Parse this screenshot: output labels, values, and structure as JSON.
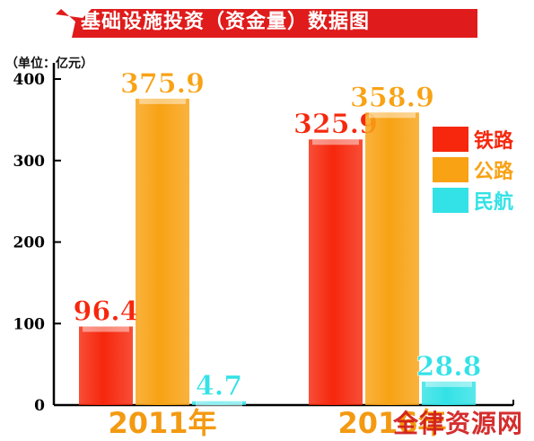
{
  "title": "基础设施投资（资金量）数据图",
  "unit": "（单位：亿元）",
  "watermark": "全律资源网",
  "colors": {
    "title_bg": "#e01b1b",
    "rail": "#f6270c",
    "road": "#f8a214",
    "aviation": "#33e2e6",
    "year_label": "#f39a12",
    "axis": "#000000"
  },
  "chart_data": {
    "type": "bar",
    "categories": [
      "2011年",
      "2016年"
    ],
    "series": [
      {
        "name": "铁路",
        "values": [
          96.4,
          325.9
        ],
        "labels": [
          "96.4",
          "325.9"
        ]
      },
      {
        "name": "公路",
        "values": [
          375.9,
          358.9
        ],
        "labels": [
          "375.9",
          "358.9"
        ]
      },
      {
        "name": "民航",
        "values": [
          4.7,
          28.8
        ],
        "labels": [
          "4.7",
          "28.8"
        ]
      }
    ],
    "yticks": [
      "0",
      "100",
      "200",
      "300",
      "400"
    ],
    "ylim": [
      0,
      400
    ],
    "legend": "right",
    "grid": false
  }
}
